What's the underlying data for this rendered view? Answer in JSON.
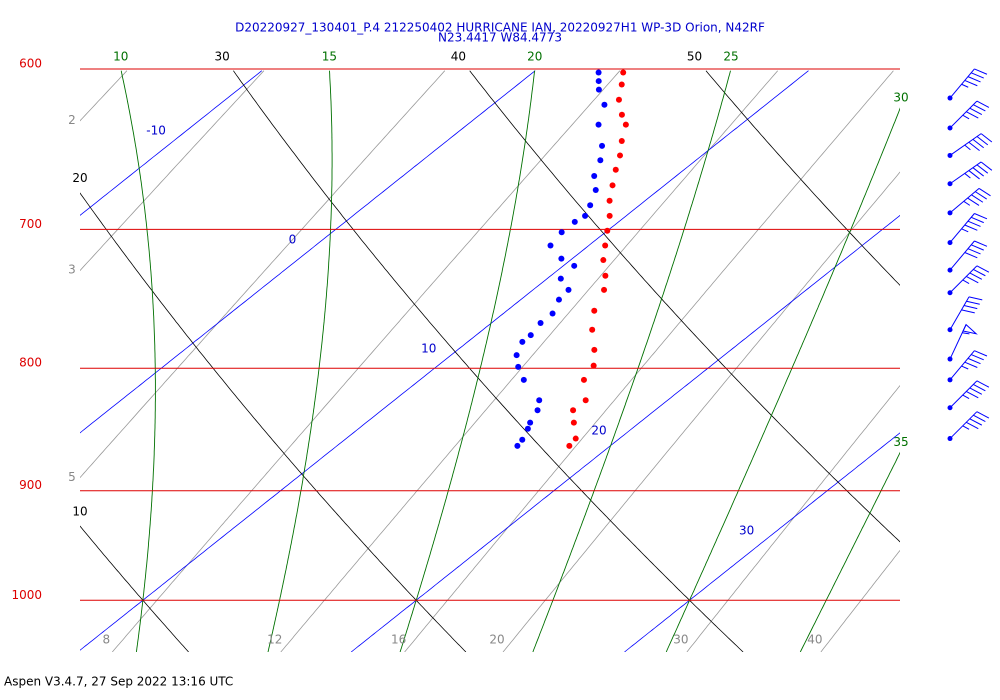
{
  "title": [
    "D20220927_130401_P.4 212250402 HURRICANE IAN, 20220927H1 WP-3D Orion, N42RF",
    "N23.4417 W84.4773"
  ],
  "footer": "Aspen V3.4.7, 27 Sep 2022  13:16 UTC",
  "chart_data": {
    "type": "skewt",
    "ylim": [
      1051,
      600
    ],
    "xlim": [
      7.7,
      37.7
    ],
    "pressure_levels": [
      600,
      700,
      800,
      900,
      1000
    ],
    "isotherms": [
      -10,
      0,
      10,
      20,
      30
    ],
    "dry_adiabats": [
      10,
      20,
      30,
      40,
      50
    ],
    "moist_adiabats": [
      10,
      15,
      20,
      25,
      30,
      35
    ],
    "mixing_ratios": [
      2,
      3,
      5,
      8,
      12,
      16,
      20,
      30,
      40
    ],
    "temperature": {
      "color": "#ff0000",
      "pressure": [
        602,
        609,
        618,
        627,
        633,
        643,
        652,
        661,
        671,
        681,
        691,
        701,
        711,
        721,
        732,
        742,
        757,
        771,
        786,
        798,
        809,
        825,
        833,
        843,
        856,
        862
      ],
      "values": [
        3.3,
        3.8,
        4.4,
        5.2,
        5.8,
        6.4,
        7.0,
        7.5,
        8.1,
        8.7,
        9.4,
        10.0,
        10.6,
        11.2,
        12.0,
        12.6,
        13.2,
        14.0,
        15.0,
        15.7,
        16.0,
        17.0,
        17.0,
        17.6,
        18.4,
        18.5
      ]
    },
    "dewpoint": {
      "color": "#0000ff",
      "pressure": [
        602,
        607,
        612,
        621,
        633,
        646,
        655,
        665,
        674,
        684,
        691,
        695,
        702,
        711,
        720,
        725,
        734,
        742,
        749,
        759,
        766,
        775,
        780,
        790,
        799,
        809,
        825,
        833,
        843,
        848,
        857,
        862
      ],
      "values": [
        2.4,
        2.8,
        3.2,
        4.1,
        4.8,
        5.9,
        6.5,
        7.0,
        7.7,
        8.2,
        8.5,
        8.4,
        8.4,
        8.6,
        9.6,
        10.4,
        10.5,
        11.3,
        11.4,
        11.8,
        11.8,
        12.0,
        12.0,
        12.4,
        13.0,
        13.8,
        15.3,
        15.7,
        16.0,
        16.2,
        16.5,
        16.6
      ]
    },
    "wind": {
      "color": "#0000ff",
      "pressure": [
        617,
        635,
        652,
        670,
        689,
        709,
        728,
        744,
        771,
        793,
        809,
        831,
        856
      ],
      "direction": [
        40,
        45,
        55,
        55,
        50,
        40,
        40,
        45,
        30,
        25,
        40,
        45,
        45
      ],
      "speed": [
        45,
        45,
        45,
        45,
        45,
        45,
        40,
        45,
        40,
        55,
        45,
        45,
        45
      ]
    }
  }
}
